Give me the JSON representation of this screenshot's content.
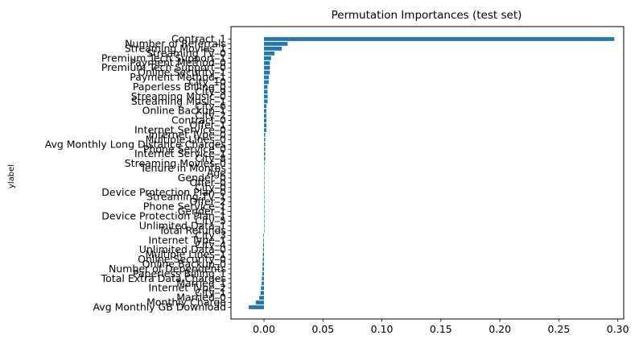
{
  "chart_data": {
    "type": "bar",
    "orientation": "horizontal",
    "title": "Permutation Importances (test set)",
    "xlabel": "",
    "ylabel": "ylabel",
    "xlim": [
      -0.028,
      0.305
    ],
    "xticks": [
      0.0,
      0.05,
      0.1,
      0.15,
      0.2,
      0.25,
      0.3
    ],
    "xtick_labels": [
      "0.00",
      "0.05",
      "0.10",
      "0.15",
      "0.20",
      "0.25",
      "0.30"
    ],
    "grid": false,
    "bar_color": "#1f77b4",
    "categories": [
      "Contract_1",
      "Number of Referrals",
      "Streaming Movies_1",
      "Streaming TV_0",
      "Premium Tech Support_1",
      "Payment Method_0",
      "Premium Tech Support_0",
      "Online Security_1",
      "Payment Method_1",
      "City_10",
      "Paperless Billing_0",
      "City_9",
      "Streaming Music_0",
      "Streaming Music_1",
      "City_6",
      "Online Backup_1",
      "City_2",
      "Contract_0",
      "Offer_1",
      "Internet Service_0",
      "Internet Type_0",
      "Multiple Lines_0",
      "Avg Monthly Long Distance Charges",
      "Phone Service_0",
      "Internet Service_1",
      "City_8",
      "Streaming Movies_0",
      "Tenure in Months",
      "Age",
      "Gender_0",
      "Offer_0",
      "City_0",
      "Device Protection Plan_0",
      "Streaming TV_1",
      "Offer_2",
      "Phone Service_1",
      "Gender_1",
      "Device Protection Plan_1",
      "City_5",
      "Unlimited Data_1",
      "Total Refunds",
      "City_3",
      "Internet Type_1",
      "City_4",
      "Unlimited Data_0",
      "Multiple Lines_1",
      "Online Security_0",
      "Online Backup_0",
      "Number of Dependents",
      "Paperless Billing_1",
      "Total Extra Data Charges",
      "Married_1",
      "Internet Type_2",
      "City_1",
      "Married_0",
      "Monthly Charge",
      "Avg Monthly GB Download"
    ],
    "values": [
      0.297,
      0.02,
      0.015,
      0.009,
      0.006,
      0.005,
      0.005,
      0.005,
      0.004,
      0.004,
      0.003,
      0.003,
      0.003,
      0.003,
      0.002,
      0.002,
      0.002,
      0.002,
      0.002,
      0.002,
      0.001,
      0.001,
      0.001,
      0.001,
      0.001,
      0.001,
      0.0005,
      0.0,
      0.0,
      0.0,
      0.0,
      0.0,
      0.0,
      0.0,
      0.0,
      0.0,
      0.0,
      0.0,
      0.0,
      0.0,
      0.0,
      -0.0005,
      -0.0006,
      -0.0007,
      -0.0008,
      -0.001,
      -0.001,
      -0.0012,
      -0.0013,
      -0.0015,
      -0.0018,
      -0.002,
      -0.0025,
      -0.003,
      -0.004,
      -0.007,
      -0.013
    ]
  }
}
